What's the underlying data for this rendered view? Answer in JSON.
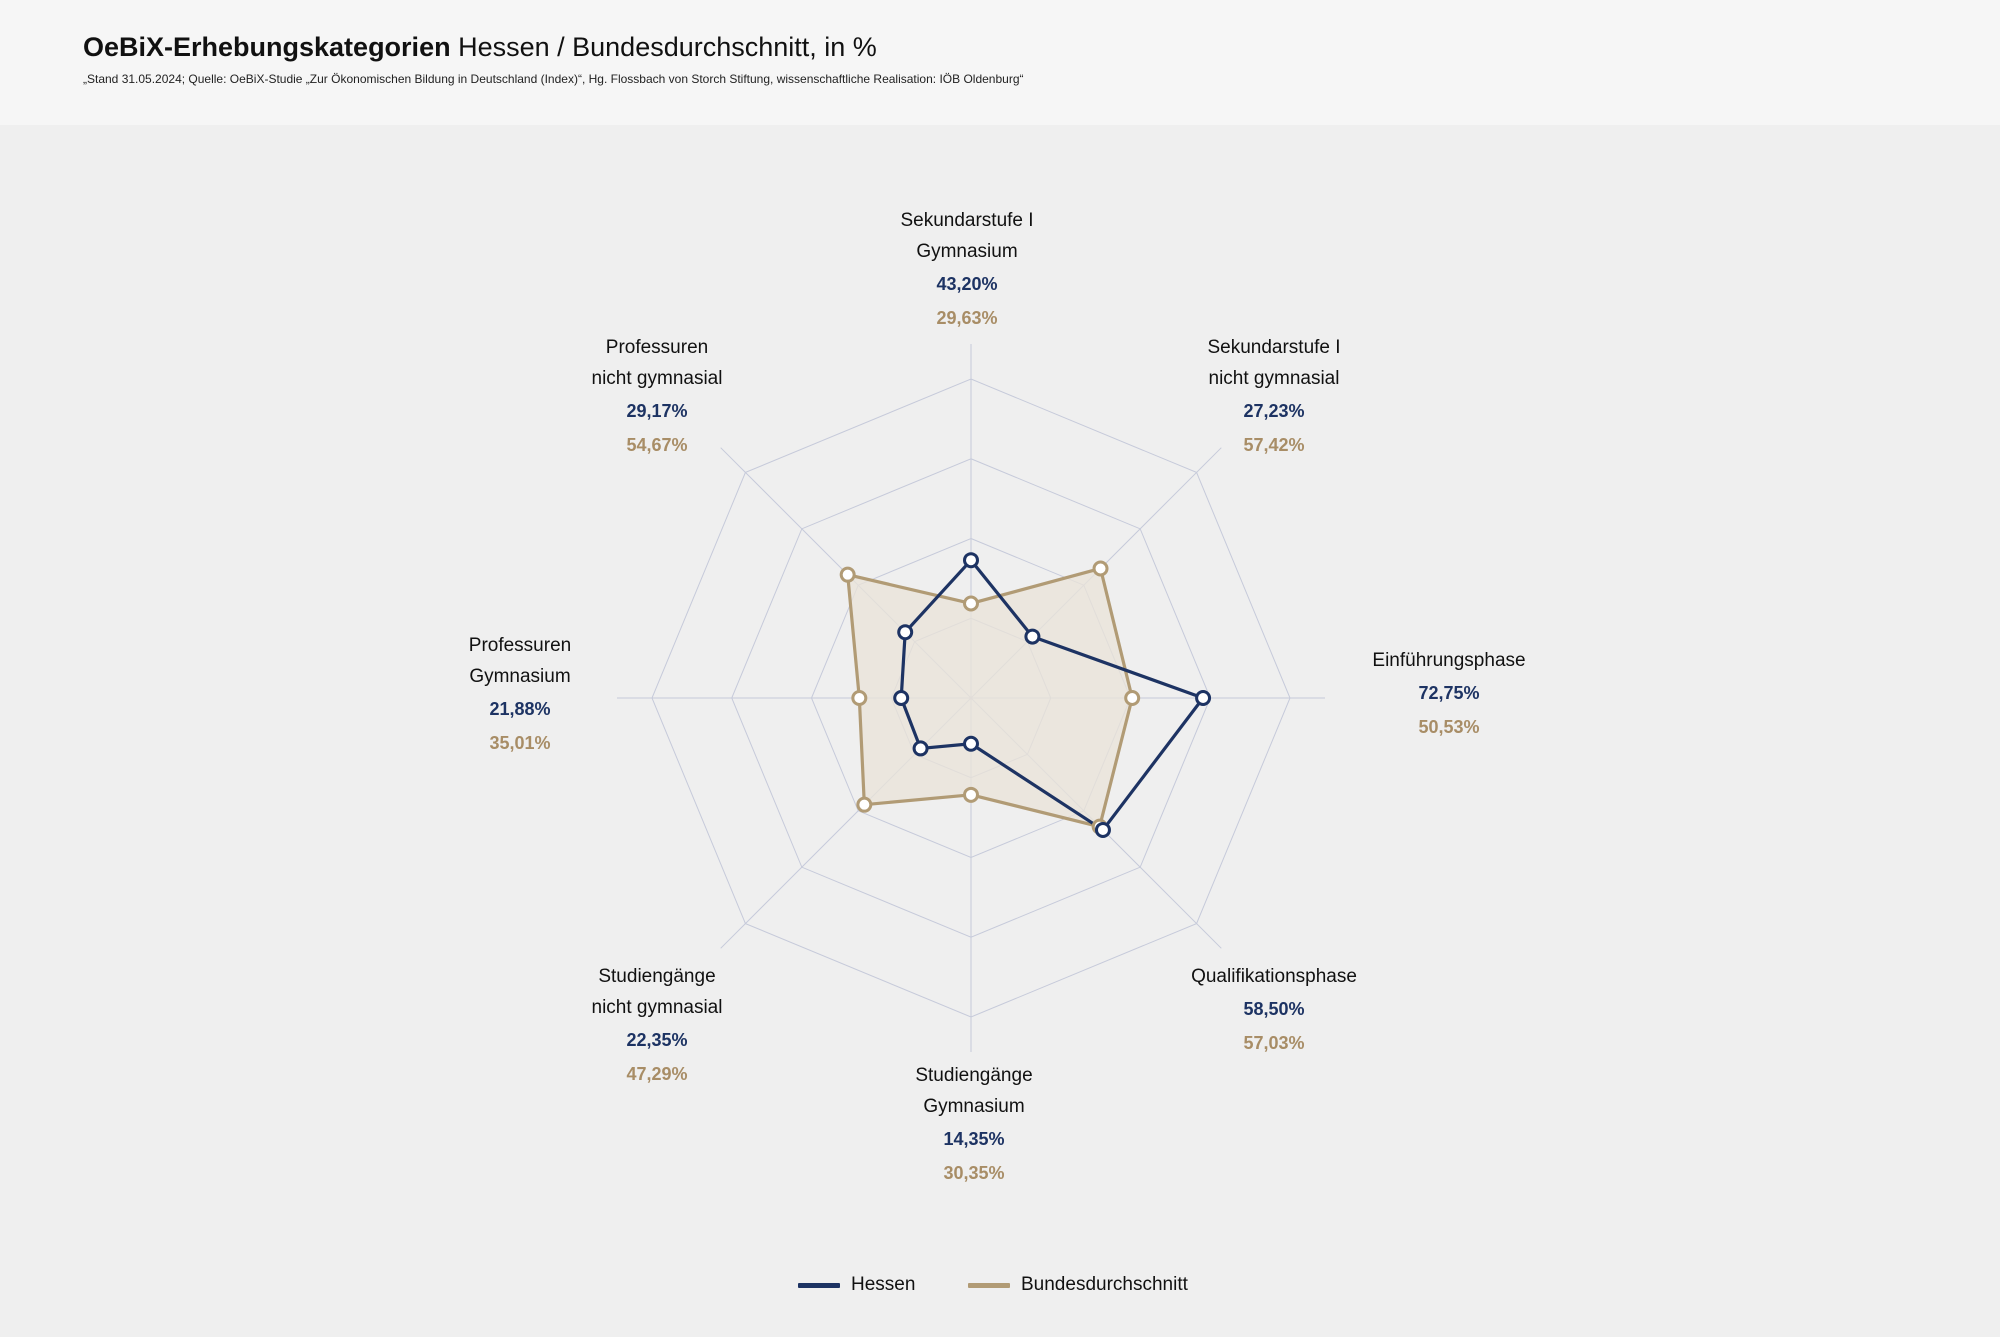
{
  "header": {
    "title_bold": "OeBiX-Erhebungskategorien",
    "title_rest": "Hessen / Bundesdurchschnitt, in %",
    "source": "„Stand 31.05.2024; Quelle: OeBiX-Studie „Zur Ökonomischen Bildung in Deutschland (Index)“, Hg. Flossbach von Storch Stiftung, wissenschaftliche Realisation: IÖB Oldenburg“"
  },
  "colors": {
    "hessen": "#1d3363",
    "bund": "#b19b75",
    "bund_fill": "#e9e3d8",
    "grid": "#c6cada",
    "background": "#efefef"
  },
  "chart_data": {
    "type": "radar",
    "title": "",
    "categories": [
      [
        "Sekundarstufe I",
        "Gymnasium"
      ],
      [
        "Sekundarstufe I",
        "nicht gymnasial"
      ],
      [
        "Einführungsphase"
      ],
      [
        "Qualifikationsphase"
      ],
      [
        "Studiengänge",
        "Gymnasium"
      ],
      [
        "Studiengänge",
        "nicht gymnasial"
      ],
      [
        "Professuren",
        "Gymnasium"
      ],
      [
        "Professuren",
        "nicht gymnasial"
      ]
    ],
    "series": [
      {
        "name": "Hessen",
        "values": [
          43.2,
          27.23,
          72.75,
          58.5,
          14.35,
          22.35,
          21.88,
          29.17
        ],
        "labels": [
          "43,20%",
          "27,23%",
          "72,75%",
          "58,50%",
          "14,35%",
          "22,35%",
          "21,88%",
          "29,17%"
        ]
      },
      {
        "name": "Bundesdurchschnitt",
        "values": [
          29.63,
          57.42,
          50.53,
          57.03,
          30.35,
          47.29,
          35.01,
          54.67
        ],
        "labels": [
          "29,63%",
          "57,42%",
          "50,53%",
          "57,03%",
          "30,35%",
          "47,29%",
          "35,01%",
          "54,67%"
        ]
      }
    ],
    "rmax": 100,
    "grid_rings": 4,
    "grid": true,
    "legend_position": "bottom-center"
  }
}
